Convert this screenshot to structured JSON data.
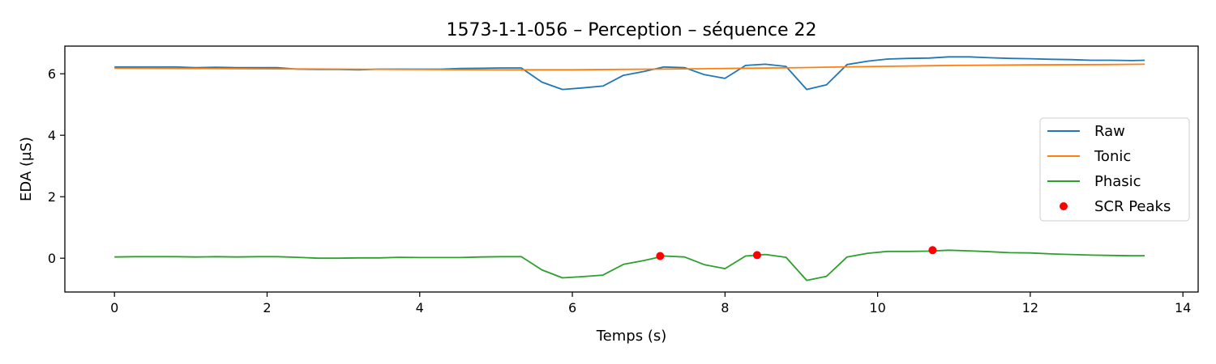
{
  "chart_data": {
    "type": "line",
    "title": "1573-1-1-056 – Perception – séquence 22",
    "xlabel": "Temps (s)",
    "ylabel": "EDA (µS)",
    "xlim": [
      -0.65,
      14.2
    ],
    "ylim": [
      -1.1,
      6.9
    ],
    "xticks": [
      0,
      2,
      4,
      6,
      8,
      10,
      12,
      14
    ],
    "yticks": [
      0,
      2,
      4,
      6
    ],
    "grid": false,
    "legend_position": "right",
    "colors": {
      "raw": "#1f77b4",
      "tonic": "#ff7f0e",
      "phasic": "#2ca02c",
      "peaks": "#ff0000"
    },
    "series": [
      {
        "name": "Raw",
        "x": [
          0,
          0.27,
          0.53,
          0.8,
          1.07,
          1.33,
          1.6,
          1.87,
          2.13,
          2.4,
          2.67,
          2.93,
          3.2,
          3.47,
          3.73,
          4.0,
          4.27,
          4.53,
          4.8,
          5.07,
          5.33,
          5.6,
          5.87,
          6.13,
          6.4,
          6.67,
          6.93,
          7.2,
          7.47,
          7.73,
          8.0,
          8.27,
          8.53,
          8.8,
          9.07,
          9.33,
          9.6,
          9.87,
          10.13,
          10.4,
          10.67,
          10.93,
          11.2,
          11.47,
          11.73,
          12.0,
          12.27,
          12.53,
          12.8,
          13.07,
          13.33,
          13.5
        ],
        "values": [
          6.22,
          6.22,
          6.22,
          6.22,
          6.2,
          6.21,
          6.2,
          6.2,
          6.2,
          6.15,
          6.14,
          6.14,
          6.13,
          6.15,
          6.15,
          6.15,
          6.15,
          6.17,
          6.18,
          6.19,
          6.19,
          5.73,
          5.49,
          5.54,
          5.6,
          5.95,
          6.07,
          6.22,
          6.2,
          5.97,
          5.85,
          6.27,
          6.31,
          6.24,
          5.49,
          5.64,
          6.3,
          6.41,
          6.48,
          6.5,
          6.51,
          6.55,
          6.55,
          6.52,
          6.5,
          6.49,
          6.47,
          6.46,
          6.44,
          6.44,
          6.43,
          6.44
        ]
      },
      {
        "name": "Tonic",
        "x": [
          0,
          1,
          2,
          3,
          4,
          5,
          6,
          7,
          8,
          9,
          10,
          11,
          12,
          13,
          13.5
        ],
        "values": [
          6.18,
          6.17,
          6.16,
          6.15,
          6.14,
          6.13,
          6.13,
          6.15,
          6.17,
          6.2,
          6.24,
          6.27,
          6.29,
          6.3,
          6.31
        ]
      },
      {
        "name": "Phasic",
        "x": [
          0,
          0.27,
          0.53,
          0.8,
          1.07,
          1.33,
          1.6,
          1.87,
          2.13,
          2.4,
          2.67,
          2.93,
          3.2,
          3.47,
          3.73,
          4.0,
          4.27,
          4.53,
          4.8,
          5.07,
          5.33,
          5.6,
          5.87,
          6.13,
          6.4,
          6.67,
          6.93,
          7.2,
          7.47,
          7.73,
          8.0,
          8.27,
          8.53,
          8.8,
          9.07,
          9.33,
          9.6,
          9.87,
          10.13,
          10.4,
          10.67,
          10.93,
          11.2,
          11.47,
          11.73,
          12.0,
          12.27,
          12.53,
          12.8,
          13.07,
          13.33,
          13.5
        ],
        "values": [
          0.04,
          0.05,
          0.05,
          0.05,
          0.04,
          0.05,
          0.04,
          0.05,
          0.05,
          0.03,
          0.0,
          0.0,
          0.01,
          0.01,
          0.03,
          0.02,
          0.02,
          0.02,
          0.04,
          0.05,
          0.05,
          -0.38,
          -0.64,
          -0.6,
          -0.55,
          -0.2,
          -0.08,
          0.07,
          0.04,
          -0.21,
          -0.34,
          0.07,
          0.12,
          0.03,
          -0.72,
          -0.59,
          0.04,
          0.16,
          0.22,
          0.22,
          0.23,
          0.26,
          0.24,
          0.21,
          0.18,
          0.17,
          0.14,
          0.12,
          0.1,
          0.09,
          0.08,
          0.08
        ]
      }
    ],
    "scatter": {
      "name": "SCR Peaks",
      "x": [
        7.15,
        8.42,
        10.72
      ],
      "values": [
        0.07,
        0.1,
        0.26
      ]
    }
  }
}
